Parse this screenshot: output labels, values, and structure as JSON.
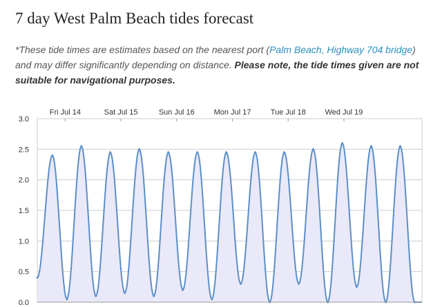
{
  "page": {
    "title": "7 day West Palm Beach tides forecast",
    "note_prefix": "*These tide times are estimates based on the nearest port (",
    "port_link": "Palm Beach, Highway 704 bridge",
    "note_middle": ") and may differ significantly depending on distance.",
    "note_warning": "Please note, the tide times given are not suitable for navigational purposes."
  },
  "colors": {
    "line": "#5b8fc7",
    "fill": "#e9e9f9",
    "grid": "#cccccc",
    "link": "#2a8fbd"
  },
  "chart_data": {
    "type": "area",
    "title": "",
    "xlabel": "",
    "ylabel": "",
    "ylim": [
      0,
      3
    ],
    "y_ticks": [
      "3.0",
      "2.5",
      "2.0",
      "1.5",
      "1.0",
      "0.5",
      "0.0"
    ],
    "x_tick_labels": [
      "Fri Jul 14",
      "Sat Jul 15",
      "Sun Jul 16",
      "Mon Jul 17",
      "Tue Jul 18",
      "Wed Jul 19"
    ],
    "x_tick_positions_days": [
      0.5,
      1.5,
      2.5,
      3.5,
      4.5,
      5.5
    ],
    "x_range_days": [
      0,
      6.9
    ],
    "grid": true,
    "legend": "none",
    "series": [
      {
        "x_days": [
          0.0,
          0.27,
          0.53,
          0.79,
          1.05,
          1.31,
          1.57,
          1.83,
          2.09,
          2.35,
          2.61,
          2.87,
          3.13,
          3.39,
          3.65,
          3.91,
          4.17,
          4.43,
          4.69,
          4.95,
          5.21,
          5.47,
          5.73,
          5.99,
          6.25,
          6.51,
          6.77
        ],
        "tide_ft": [
          0.4,
          2.4,
          0.05,
          2.55,
          0.1,
          2.45,
          0.15,
          2.5,
          0.1,
          2.45,
          0.2,
          2.45,
          0.05,
          2.45,
          0.3,
          2.45,
          0.0,
          2.45,
          0.3,
          2.5,
          0.0,
          2.6,
          0.25,
          2.55,
          0.0,
          2.55,
          0.0
        ]
      }
    ]
  }
}
